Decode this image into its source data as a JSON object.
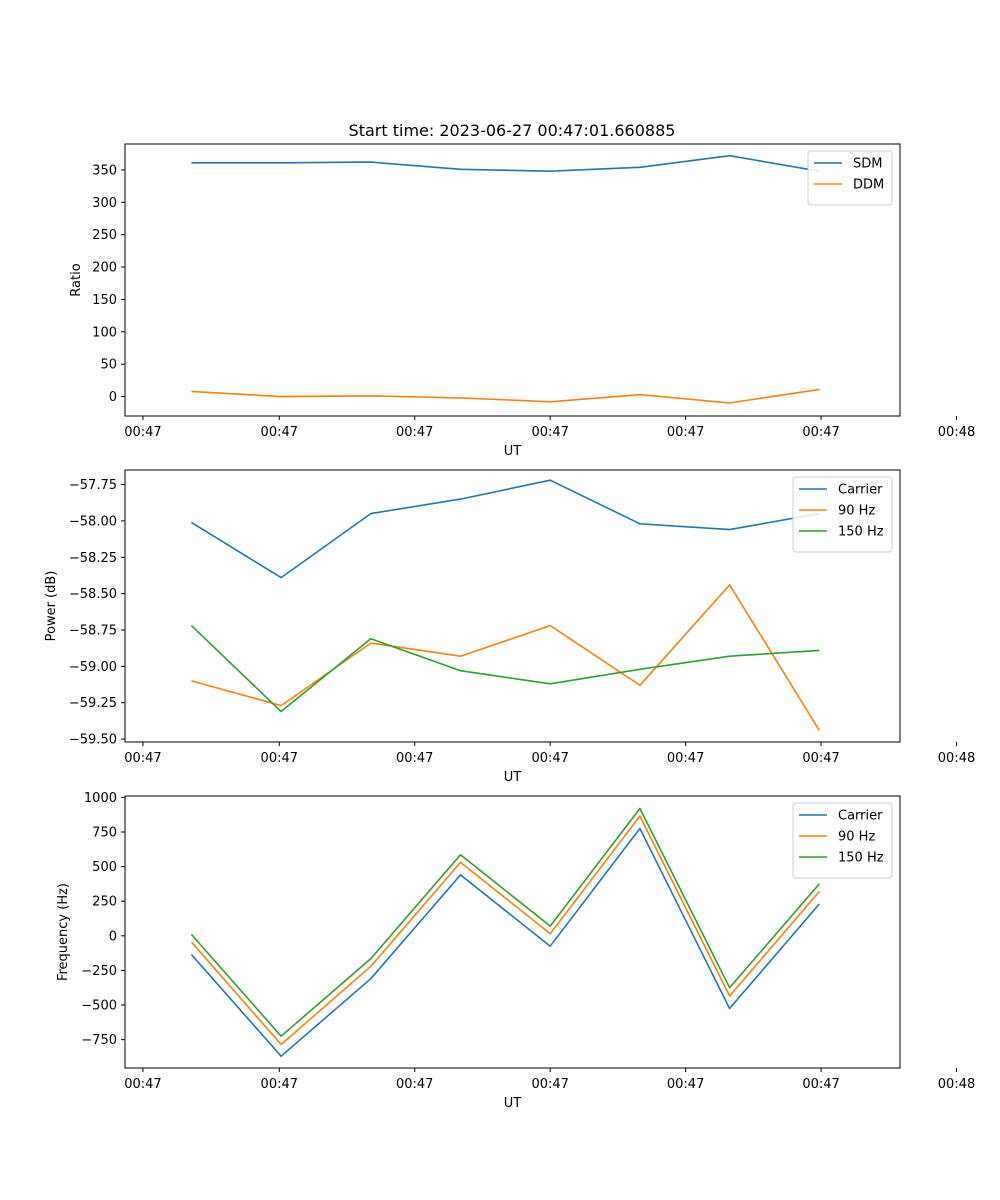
{
  "figure": {
    "title": "Start time: 2023-06-27 00:47:01.660885"
  },
  "colors": {
    "blue": "#1f77b4",
    "orange": "#ff7f0e",
    "green": "#2ca02c"
  },
  "chart_data": [
    {
      "type": "line",
      "title": "Start time: 2023-06-27 00:47:01.660885",
      "xlabel": "UT",
      "ylabel": "Ratio",
      "x": [
        1,
        2,
        3,
        4,
        5,
        6,
        7,
        8
      ],
      "xlim": [
        0.26,
        8.9
      ],
      "xticks": [
        0.46,
        1.98,
        3.49,
        5.0,
        6.51,
        8.02,
        9.53
      ],
      "xtick_labels": [
        "00:47",
        "00:47",
        "00:47",
        "00:47",
        "00:47",
        "00:47",
        "00:48"
      ],
      "ylim": [
        -30,
        390
      ],
      "yticks": [
        0,
        50,
        100,
        150,
        200,
        250,
        300,
        350
      ],
      "ytick_labels": [
        "0",
        "50",
        "100",
        "150",
        "200",
        "250",
        "300",
        "350"
      ],
      "legend": "top-right",
      "grid": false,
      "series": [
        {
          "name": "SDM",
          "color": "blue",
          "values": [
            361,
            361,
            362,
            351,
            348,
            354,
            372,
            348
          ]
        },
        {
          "name": "DDM",
          "color": "orange",
          "values": [
            8,
            0,
            1,
            -2,
            -8,
            3,
            -10,
            11
          ]
        }
      ]
    },
    {
      "type": "line",
      "xlabel": "UT",
      "ylabel": "Power (dB)",
      "x": [
        1,
        2,
        3,
        4,
        5,
        6,
        7,
        8
      ],
      "xlim": [
        0.26,
        8.9
      ],
      "xticks": [
        0.46,
        1.98,
        3.49,
        5.0,
        6.51,
        8.02,
        9.53
      ],
      "xtick_labels": [
        "00:47",
        "00:47",
        "00:47",
        "00:47",
        "00:47",
        "00:47",
        "00:48"
      ],
      "ylim": [
        -59.52,
        -57.65
      ],
      "yticks": [
        -59.5,
        -59.25,
        -59.0,
        -58.75,
        -58.5,
        -58.25,
        -58.0,
        -57.75
      ],
      "ytick_labels": [
        "−59.50",
        "−59.25",
        "−59.00",
        "−58.75",
        "−58.50",
        "−58.25",
        "−58.00",
        "−57.75"
      ],
      "legend": "top-right",
      "grid": false,
      "series": [
        {
          "name": "Carrier",
          "color": "blue",
          "values": [
            -58.01,
            -58.39,
            -57.95,
            -57.85,
            -57.72,
            -58.02,
            -58.06,
            -57.95
          ]
        },
        {
          "name": "90 Hz",
          "color": "orange",
          "values": [
            -59.1,
            -59.27,
            -58.84,
            -58.93,
            -58.72,
            -59.13,
            -58.44,
            -59.44
          ]
        },
        {
          "name": "150 Hz",
          "color": "green",
          "values": [
            -58.72,
            -59.31,
            -58.81,
            -59.03,
            -59.12,
            -59.02,
            -58.93,
            -58.89
          ]
        }
      ]
    },
    {
      "type": "line",
      "xlabel": "UT",
      "ylabel": "Frequency (Hz)",
      "x": [
        1,
        2,
        3,
        4,
        5,
        6,
        7,
        8
      ],
      "xlim": [
        0.26,
        8.9
      ],
      "xticks": [
        0.46,
        1.98,
        3.49,
        5.0,
        6.51,
        8.02,
        9.53
      ],
      "xtick_labels": [
        "00:47",
        "00:47",
        "00:47",
        "00:47",
        "00:47",
        "00:47",
        "00:48"
      ],
      "ylim": [
        -955,
        1010
      ],
      "yticks": [
        -750,
        -500,
        -250,
        0,
        250,
        500,
        750,
        1000
      ],
      "ytick_labels": [
        "−750",
        "−500",
        "−250",
        "0",
        "250",
        "500",
        "750",
        "1000"
      ],
      "legend": "top-right",
      "grid": false,
      "series": [
        {
          "name": "Carrier",
          "color": "blue",
          "values": [
            -135,
            -870,
            -310,
            440,
            -75,
            775,
            -525,
            230
          ]
        },
        {
          "name": "90 Hz",
          "color": "orange",
          "values": [
            -45,
            -785,
            -220,
            530,
            15,
            865,
            -435,
            320
          ]
        },
        {
          "name": "150 Hz",
          "color": "green",
          "values": [
            10,
            -725,
            -165,
            585,
            70,
            920,
            -375,
            375
          ]
        }
      ]
    }
  ]
}
